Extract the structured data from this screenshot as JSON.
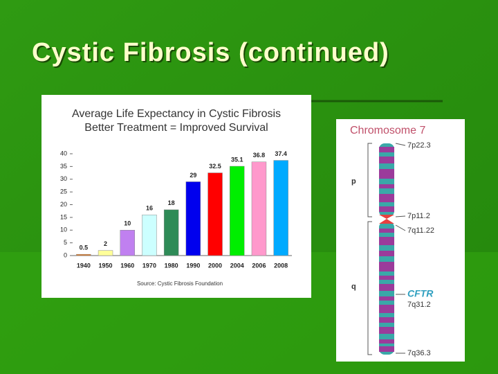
{
  "slide": {
    "title": "Cystic Fibrosis (continued)"
  },
  "chart_data": {
    "type": "bar",
    "title": "Average Life Expectancy in Cystic Fibrosis",
    "subtitle": "Better Treatment = Improved Survival",
    "source": "Source: Cystic Fibrosis Foundation",
    "categories": [
      "1940",
      "1950",
      "1960",
      "1970",
      "1980",
      "1990",
      "2000",
      "2004",
      "2006",
      "2008"
    ],
    "values": [
      0.5,
      2,
      10,
      16,
      18,
      29,
      32.5,
      35.1,
      36.8,
      37.4
    ],
    "colors": [
      "#e07820",
      "#ffff99",
      "#c080f0",
      "#ccffff",
      "#2e8b57",
      "#0000ee",
      "#ff0000",
      "#00ee00",
      "#ff99cc",
      "#00aaff"
    ],
    "ylim": [
      0,
      40
    ],
    "yticks": [
      0,
      5,
      10,
      15,
      20,
      25,
      30,
      35,
      40
    ],
    "grid": false
  },
  "chromosome": {
    "title": "Chromosome 7",
    "labels": [
      "7p22.3",
      "p",
      "7p11.2",
      "7q11.22",
      "q",
      "CFTR",
      "7q31.2",
      "7q36.3"
    ]
  }
}
